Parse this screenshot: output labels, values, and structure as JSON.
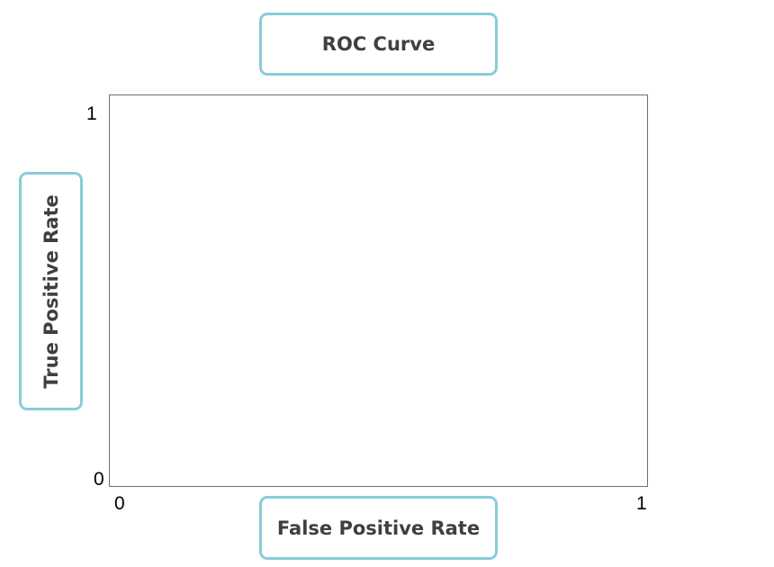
{
  "chart_data": {
    "type": "line",
    "title": "ROC Curve",
    "xlabel": "False Positive Rate",
    "ylabel": "True Positive Rate",
    "xlim": [
      0,
      1
    ],
    "ylim": [
      0,
      1
    ],
    "x_ticks": [
      "0",
      "1"
    ],
    "y_ticks": [
      "0",
      "1"
    ],
    "grid": false,
    "series": [],
    "colors": {
      "label_border": "#88cdd8",
      "label_text": "#3f3f3f",
      "axis_frame": "#6e6e6e"
    }
  }
}
